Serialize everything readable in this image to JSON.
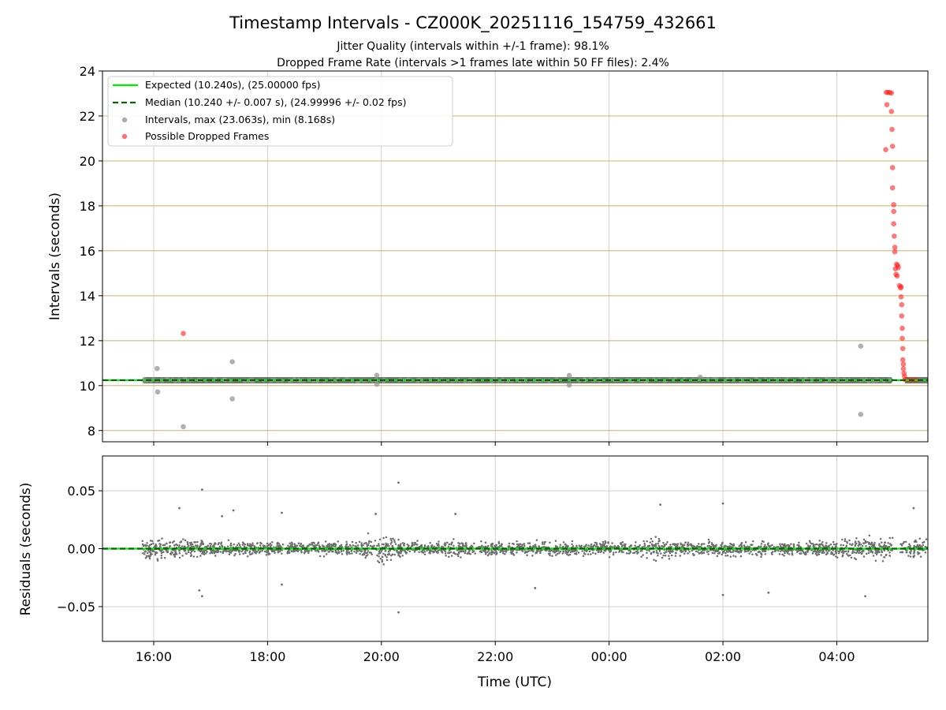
{
  "chart_data": {
    "title": "Timestamp Intervals - CZ000K_20251116_154759_432661",
    "subtitle_lines": [
      "Jitter Quality (intervals within +/-1 frame): 98.1%",
      "Dropped Frame Rate (intervals >1 frames late within 50 FF files): 2.4%"
    ],
    "x_axis": {
      "label": "Time (UTC)",
      "unit": "hours since 2025-11-16 00:00 UTC",
      "range": [
        15.1,
        29.6
      ],
      "ticks": [
        {
          "value": 16,
          "label": "16:00"
        },
        {
          "value": 18,
          "label": "18:00"
        },
        {
          "value": 20,
          "label": "20:00"
        },
        {
          "value": 22,
          "label": "22:00"
        },
        {
          "value": 24,
          "label": "00:00"
        },
        {
          "value": 26,
          "label": "02:00"
        },
        {
          "value": 28,
          "label": "04:00"
        }
      ],
      "grid": true
    },
    "top_panel": {
      "type": "scatter",
      "ylabel": "Intervals (seconds)",
      "ylim": [
        7.5,
        24.0
      ],
      "yticks": [
        {
          "value": 8,
          "label": "8"
        },
        {
          "value": 10,
          "label": "10"
        },
        {
          "value": 12,
          "label": "12"
        },
        {
          "value": 14,
          "label": "14"
        },
        {
          "value": 16,
          "label": "16"
        },
        {
          "value": 18,
          "label": "18"
        },
        {
          "value": 20,
          "label": "20"
        },
        {
          "value": 22,
          "label": "22"
        },
        {
          "value": 24,
          "label": "24"
        }
      ],
      "grid_color": "#c8b46a",
      "expected_value": 10.24,
      "median_value": 10.24,
      "data_start": 15.8,
      "data_end": 29.6,
      "band_color": "#5a5a5a",
      "legend": {
        "position": "upper-left",
        "entries": [
          {
            "label": "Expected (10.240s), (25.00000 fps)",
            "kind": "line",
            "color": "#00ee00",
            "dash": false
          },
          {
            "label": "Median (10.240 +/- 0.007 s), (24.99996 +/- 0.02 fps)",
            "kind": "line",
            "color": "#006400",
            "dash": true
          },
          {
            "label": "Intervals, max (23.063s), min (8.168s)",
            "kind": "marker",
            "color": "#909090"
          },
          {
            "label": "Possible Dropped Frames",
            "kind": "marker",
            "color": "#ff3333"
          }
        ]
      },
      "outliers": [
        {
          "x": 16.06,
          "y": 10.76
        },
        {
          "x": 16.07,
          "y": 9.72
        },
        {
          "x": 16.52,
          "y": 8.17
        },
        {
          "x": 17.38,
          "y": 11.06
        },
        {
          "x": 17.38,
          "y": 9.41
        },
        {
          "x": 19.92,
          "y": 10.46
        },
        {
          "x": 19.92,
          "y": 10.06
        },
        {
          "x": 23.3,
          "y": 10.45
        },
        {
          "x": 23.3,
          "y": 10.02
        },
        {
          "x": 28.42,
          "y": 11.76
        },
        {
          "x": 28.42,
          "y": 8.72
        },
        {
          "x": 25.6,
          "y": 10.37
        }
      ],
      "dropped_frames": [
        {
          "x": 16.52,
          "y": 12.32
        },
        {
          "x": 28.87,
          "y": 23.05
        },
        {
          "x": 28.9,
          "y": 23.05
        },
        {
          "x": 28.93,
          "y": 23.04
        },
        {
          "x": 28.96,
          "y": 23.02
        },
        {
          "x": 28.88,
          "y": 22.5
        },
        {
          "x": 28.96,
          "y": 22.2
        },
        {
          "x": 28.97,
          "y": 21.4
        },
        {
          "x": 28.98,
          "y": 20.65
        },
        {
          "x": 28.86,
          "y": 20.5
        },
        {
          "x": 28.98,
          "y": 19.7
        },
        {
          "x": 28.98,
          "y": 18.8
        },
        {
          "x": 29.0,
          "y": 18.05
        },
        {
          "x": 29.0,
          "y": 17.75
        },
        {
          "x": 29.0,
          "y": 17.2
        },
        {
          "x": 29.01,
          "y": 16.65
        },
        {
          "x": 29.02,
          "y": 16.15
        },
        {
          "x": 29.02,
          "y": 15.95
        },
        {
          "x": 29.05,
          "y": 15.4
        },
        {
          "x": 29.07,
          "y": 15.35
        },
        {
          "x": 29.03,
          "y": 15.2
        },
        {
          "x": 29.08,
          "y": 15.25
        },
        {
          "x": 29.04,
          "y": 14.95
        },
        {
          "x": 29.06,
          "y": 14.88
        },
        {
          "x": 29.1,
          "y": 14.45
        },
        {
          "x": 29.12,
          "y": 14.35
        },
        {
          "x": 29.13,
          "y": 14.4
        },
        {
          "x": 29.13,
          "y": 13.95
        },
        {
          "x": 29.14,
          "y": 13.6
        },
        {
          "x": 29.14,
          "y": 13.1
        },
        {
          "x": 29.15,
          "y": 12.55
        },
        {
          "x": 29.15,
          "y": 12.1
        },
        {
          "x": 29.16,
          "y": 11.65
        },
        {
          "x": 29.16,
          "y": 11.15
        },
        {
          "x": 29.17,
          "y": 10.95
        },
        {
          "x": 29.17,
          "y": 10.75
        },
        {
          "x": 29.18,
          "y": 10.55
        },
        {
          "x": 29.19,
          "y": 10.4
        },
        {
          "x": 29.2,
          "y": 10.26
        },
        {
          "x": 29.25,
          "y": 10.25
        },
        {
          "x": 29.3,
          "y": 10.25
        },
        {
          "x": 29.35,
          "y": 10.25
        },
        {
          "x": 29.4,
          "y": 10.25
        }
      ]
    },
    "bottom_panel": {
      "type": "scatter",
      "ylabel": "Residuals (seconds)",
      "ylim": [
        -0.08,
        0.08
      ],
      "yticks": [
        {
          "value": 0.05,
          "label": "0.05"
        },
        {
          "value": 0.0,
          "label": "0.00"
        },
        {
          "value": -0.05,
          "label": "−0.05"
        }
      ],
      "grid": true,
      "point_color": "#6e6e6e",
      "zero_line": 0.0,
      "points": [
        {
          "x": 16.45,
          "y": 0.035
        },
        {
          "x": 16.85,
          "y": 0.051
        },
        {
          "x": 16.8,
          "y": -0.036
        },
        {
          "x": 16.85,
          "y": -0.041
        },
        {
          "x": 17.2,
          "y": 0.028
        },
        {
          "x": 17.4,
          "y": 0.033
        },
        {
          "x": 18.25,
          "y": 0.031
        },
        {
          "x": 18.25,
          "y": -0.031
        },
        {
          "x": 19.9,
          "y": 0.03
        },
        {
          "x": 20.3,
          "y": 0.057
        },
        {
          "x": 20.3,
          "y": -0.055
        },
        {
          "x": 21.3,
          "y": 0.03
        },
        {
          "x": 22.7,
          "y": -0.034
        },
        {
          "x": 24.9,
          "y": 0.038
        },
        {
          "x": 26.0,
          "y": 0.039
        },
        {
          "x": 26.0,
          "y": -0.04
        },
        {
          "x": 26.8,
          "y": -0.038
        },
        {
          "x": 28.5,
          "y": -0.041
        },
        {
          "x": 29.35,
          "y": 0.035
        }
      ],
      "density": [
        {
          "x": 15.8,
          "amp": 0.018
        },
        {
          "x": 16.9,
          "amp": 0.018
        },
        {
          "x": 17.0,
          "amp": 0.012
        },
        {
          "x": 19.6,
          "amp": 0.012
        },
        {
          "x": 19.85,
          "amp": 0.026
        },
        {
          "x": 20.2,
          "amp": 0.026
        },
        {
          "x": 20.4,
          "amp": 0.012
        },
        {
          "x": 21.1,
          "amp": 0.012
        },
        {
          "x": 21.3,
          "amp": 0.024
        },
        {
          "x": 21.5,
          "amp": 0.013
        },
        {
          "x": 24.6,
          "amp": 0.013
        },
        {
          "x": 24.8,
          "amp": 0.025
        },
        {
          "x": 25.1,
          "amp": 0.013
        },
        {
          "x": 27.95,
          "amp": 0.013
        },
        {
          "x": 28.3,
          "amp": 0.025
        },
        {
          "x": 28.8,
          "amp": 0.02
        },
        {
          "x": 28.98,
          "amp": 0.02
        }
      ],
      "gaps": [
        [
          28.98,
          29.12
        ]
      ],
      "tail_start": 29.12
    }
  }
}
